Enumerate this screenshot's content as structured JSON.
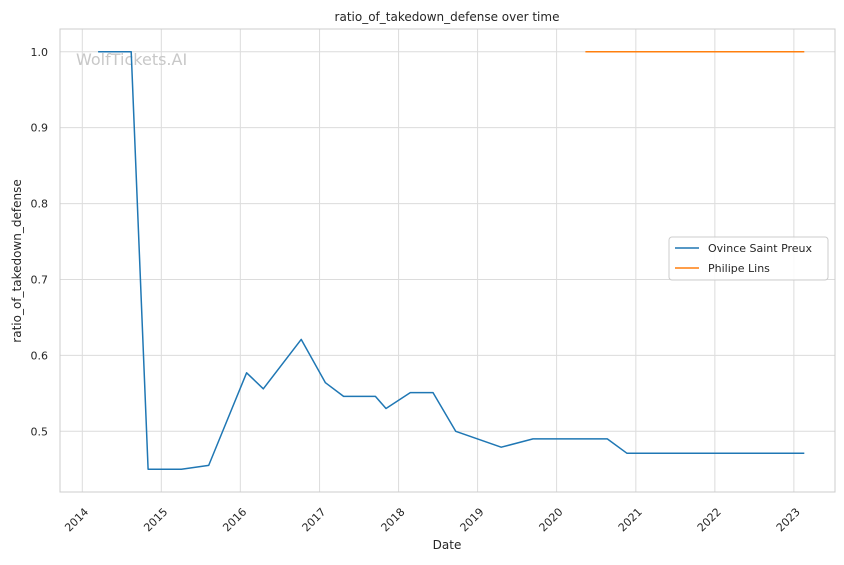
{
  "watermark": "WolfTickets.AI",
  "chart_data": {
    "type": "line",
    "title": "ratio_of_takedown_defense over time",
    "xlabel": "Date",
    "ylabel": "ratio_of_takedown_defense",
    "x_axis_type": "date",
    "xlim": [
      "2013-09-20",
      "2023-07-10"
    ],
    "ylim": [
      0.42,
      1.03
    ],
    "x_ticks": [
      "2014",
      "2015",
      "2016",
      "2017",
      "2018",
      "2019",
      "2020",
      "2021",
      "2022",
      "2023"
    ],
    "y_ticks": [
      0.5,
      0.6,
      0.7,
      0.8,
      0.9,
      1.0
    ],
    "y_tick_labels": [
      "0.5",
      "0.6",
      "0.7",
      "0.8",
      "0.9",
      "1.0"
    ],
    "grid": true,
    "legend_position": "center-right",
    "series": [
      {
        "name": "Ovince Saint Preux",
        "color": "#1f77b4",
        "points": [
          [
            "2014-03-15",
            1.0
          ],
          [
            "2014-08-15",
            1.0
          ],
          [
            "2014-11-01",
            0.45
          ],
          [
            "2015-04-04",
            0.45
          ],
          [
            "2015-08-08",
            0.455
          ],
          [
            "2016-01-30",
            0.577
          ],
          [
            "2016-04-16",
            0.556
          ],
          [
            "2016-10-08",
            0.621
          ],
          [
            "2017-01-28",
            0.564
          ],
          [
            "2017-04-22",
            0.546
          ],
          [
            "2017-09-16",
            0.546
          ],
          [
            "2017-11-04",
            0.53
          ],
          [
            "2018-02-24",
            0.551
          ],
          [
            "2018-06-09",
            0.551
          ],
          [
            "2018-09-22",
            0.5
          ],
          [
            "2019-04-20",
            0.479
          ],
          [
            "2019-09-14",
            0.49
          ],
          [
            "2020-08-22",
            0.49
          ],
          [
            "2020-11-21",
            0.471
          ],
          [
            "2023-02-18",
            0.471
          ]
        ]
      },
      {
        "name": "Philipe Lins",
        "color": "#ff7f0e",
        "points": [
          [
            "2020-05-13",
            1.0
          ],
          [
            "2023-02-18",
            1.0
          ]
        ]
      }
    ]
  }
}
